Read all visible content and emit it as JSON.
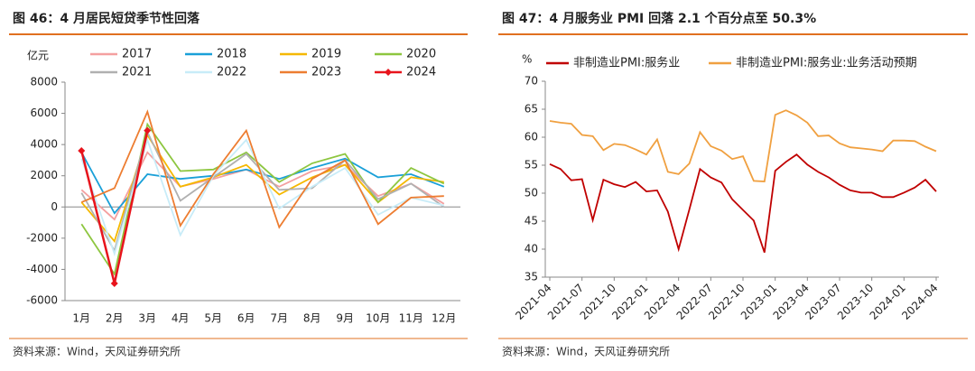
{
  "chart_data": [
    {
      "type": "line",
      "title": "图 46：4 月居民短贷季节性回落",
      "source": "资料来源：Wind，天风证券研究所",
      "y_label": "亿元",
      "categories": [
        "1月",
        "2月",
        "3月",
        "4月",
        "5月",
        "6月",
        "7月",
        "8月",
        "9月",
        "10月",
        "11月",
        "12月"
      ],
      "ylim": [
        -6000,
        8000
      ],
      "yticks": [
        -6000,
        -4000,
        -2000,
        0,
        2000,
        4000,
        6000,
        8000
      ],
      "series": [
        {
          "name": "2017",
          "color": "#f4a0a0",
          "values": [
            1100,
            -800,
            3500,
            1300,
            1800,
            2400,
            1300,
            2300,
            2700,
            700,
            1500,
            200
          ]
        },
        {
          "name": "2018",
          "color": "#1aa0d8",
          "values": [
            3500,
            -400,
            2100,
            1800,
            2000,
            2400,
            1800,
            2500,
            3100,
            1900,
            2100,
            1300
          ]
        },
        {
          "name": "2019",
          "color": "#f5b800",
          "values": [
            300,
            -2200,
            4600,
            1300,
            1900,
            2700,
            800,
            1900,
            2700,
            300,
            1900,
            1600
          ]
        },
        {
          "name": "2020",
          "color": "#8dc63f",
          "values": [
            -1100,
            -4300,
            5300,
            2300,
            2400,
            3500,
            1600,
            2800,
            3400,
            300,
            2500,
            1500
          ]
        },
        {
          "name": "2021",
          "color": "#b0b0b0",
          "values": [
            900,
            -2800,
            4800,
            400,
            1900,
            3400,
            1100,
            1200,
            3000,
            500,
            1500,
            0
          ]
        },
        {
          "name": "2022",
          "color": "#c8ecf8",
          "values": [
            3100,
            -3000,
            4300,
            -1800,
            2000,
            4300,
            -100,
            1300,
            2500,
            -500,
            600,
            100
          ]
        },
        {
          "name": "2023",
          "color": "#ed7d31",
          "values": [
            300,
            1200,
            6100,
            -1200,
            2100,
            4900,
            -1300,
            1800,
            3000,
            -1100,
            600,
            700
          ]
        },
        {
          "name": "2024",
          "color": "#e8141c",
          "marker": "diamond",
          "values": [
            3600,
            -4900,
            4900,
            null,
            null,
            null,
            null,
            null,
            null,
            null,
            null,
            null
          ]
        }
      ]
    },
    {
      "type": "line",
      "title": "图 47：4 月服务业 PMI 回落 2.1 个百分点至 50.3%",
      "source": "资料来源：Wind，天风证券研究所",
      "y_label": "%",
      "x": [
        "2021-04",
        "2021-05",
        "2021-06",
        "2021-07",
        "2021-08",
        "2021-09",
        "2021-10",
        "2021-11",
        "2021-12",
        "2022-01",
        "2022-02",
        "2022-03",
        "2022-04",
        "2022-05",
        "2022-06",
        "2022-07",
        "2022-08",
        "2022-09",
        "2022-10",
        "2022-11",
        "2022-12",
        "2023-01",
        "2023-02",
        "2023-03",
        "2023-04",
        "2023-05",
        "2023-06",
        "2023-07",
        "2023-08",
        "2023-09",
        "2023-10",
        "2023-11",
        "2023-12",
        "2024-01",
        "2024-02",
        "2024-03",
        "2024-04"
      ],
      "ylim": [
        35,
        70
      ],
      "yticks": [
        35,
        40,
        45,
        50,
        55,
        60,
        65,
        70
      ],
      "series": [
        {
          "name": "非制造业PMI:服务业",
          "color": "#c00000",
          "values": [
            55.2,
            54.3,
            52.3,
            52.5,
            45.2,
            52.4,
            51.6,
            51.1,
            52.0,
            50.3,
            50.5,
            46.7,
            40.0,
            47.1,
            54.3,
            52.8,
            51.9,
            48.9,
            47.0,
            45.1,
            39.4,
            54.0,
            55.6,
            56.9,
            55.1,
            53.8,
            52.8,
            51.5,
            50.5,
            50.1,
            50.1,
            49.3,
            49.3,
            50.1,
            51.0,
            52.4,
            50.3
          ]
        },
        {
          "name": "非制造业PMI:服务业:业务活动预期",
          "color": "#f0a040",
          "values": [
            62.9,
            62.6,
            62.4,
            60.4,
            60.2,
            57.7,
            58.8,
            58.6,
            57.8,
            56.9,
            59.6,
            53.8,
            53.4,
            55.3,
            60.9,
            58.4,
            57.6,
            56.1,
            56.6,
            52.2,
            52.1,
            64.0,
            64.8,
            63.9,
            62.6,
            60.2,
            60.3,
            58.9,
            58.2,
            58.0,
            57.8,
            57.5,
            59.4,
            59.4,
            59.3,
            58.3,
            57.5
          ]
        }
      ]
    }
  ]
}
